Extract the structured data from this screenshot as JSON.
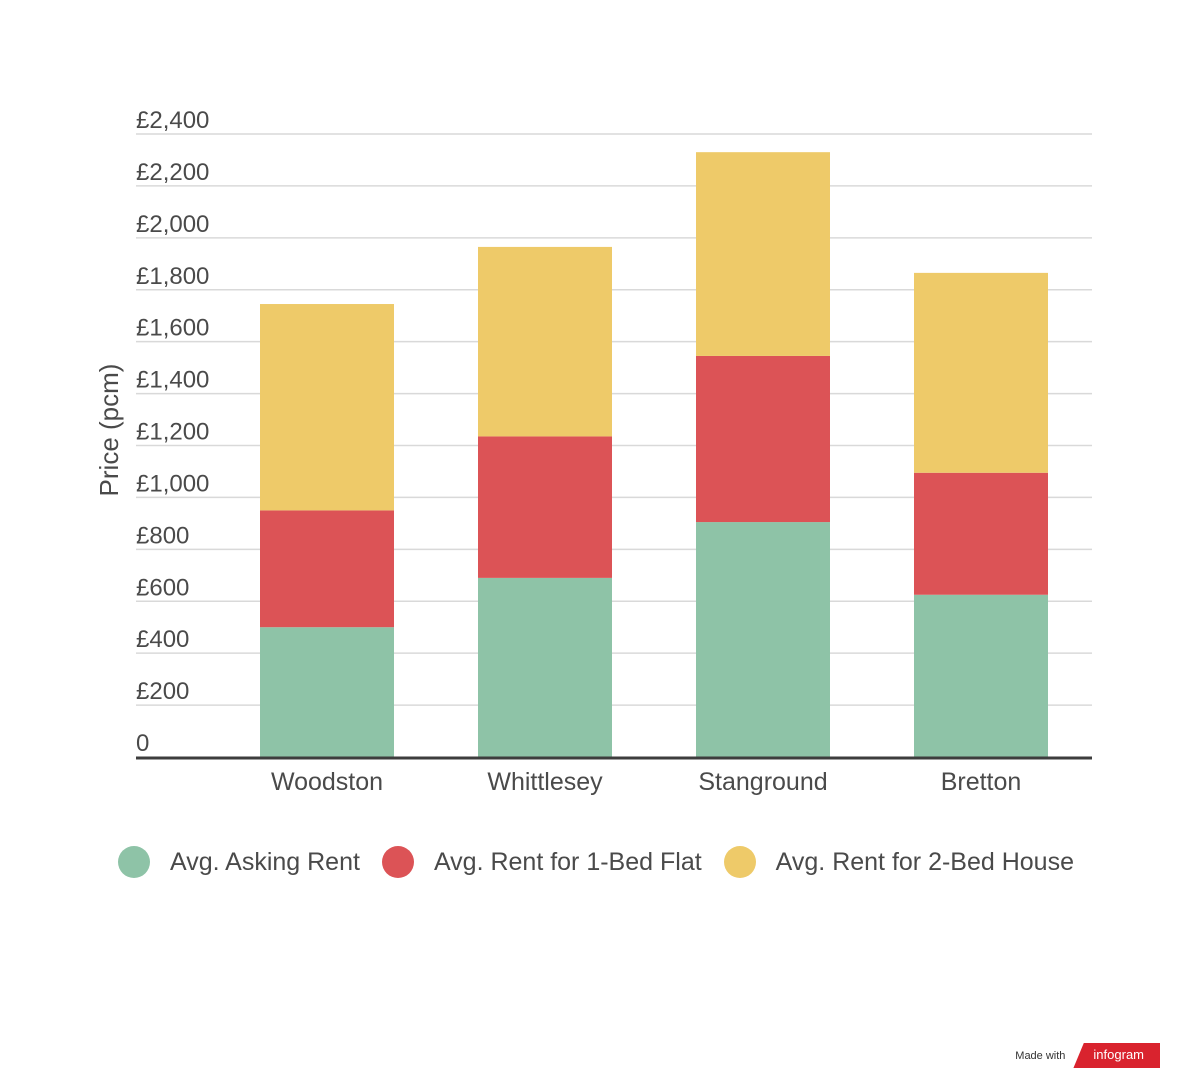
{
  "chart_data": {
    "type": "bar",
    "stacked": true,
    "title": "",
    "xlabel": "",
    "ylabel": "Price (pcm)",
    "ylim": [
      0,
      2400
    ],
    "yticks": [
      0,
      200,
      400,
      600,
      800,
      1000,
      1200,
      1400,
      1600,
      1800,
      2000,
      2200,
      2400
    ],
    "ytick_labels": [
      "0",
      "£200",
      "£400",
      "£600",
      "£800",
      "£1,000",
      "£1,200",
      "£1,400",
      "£1,600",
      "£1,800",
      "£2,000",
      "£2,200",
      "£2,400"
    ],
    "grid": true,
    "legend_position": "bottom",
    "categories": [
      "Woodston",
      "Whittlesey",
      "Stanground",
      "Bretton"
    ],
    "series": [
      {
        "name": "Avg. Asking Rent",
        "color": "#8ec3a7",
        "values": [
          500,
          690,
          905,
          625
        ]
      },
      {
        "name": "Avg. Rent for 1-Bed Flat",
        "color": "#dc5356",
        "values": [
          450,
          545,
          640,
          470
        ]
      },
      {
        "name": "Avg. Rent for 2-Bed House",
        "color": "#eeca69",
        "values": [
          795,
          730,
          785,
          770
        ]
      }
    ]
  },
  "badge": {
    "made_with": "Made with",
    "brand": "infogram"
  }
}
